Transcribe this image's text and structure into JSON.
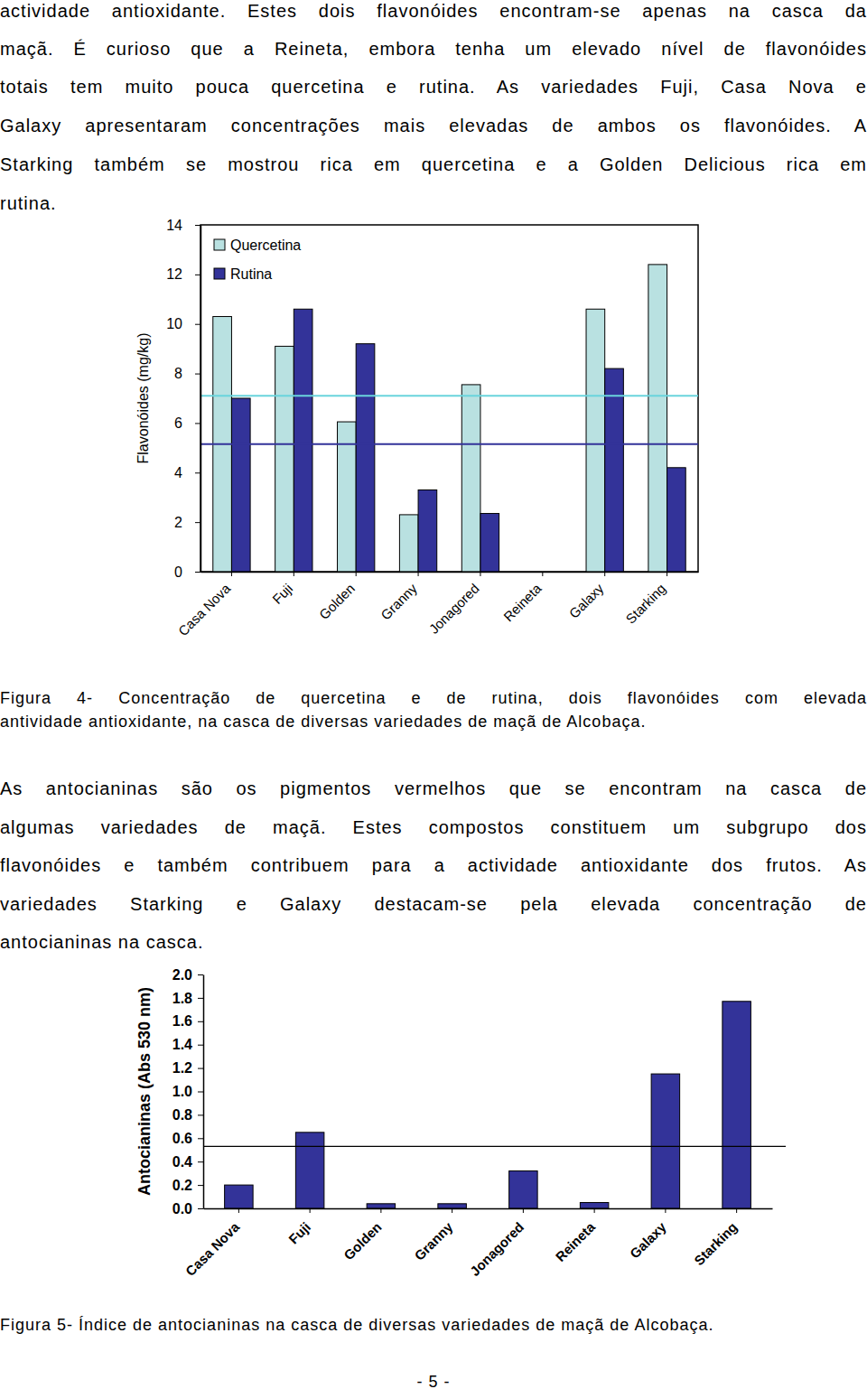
{
  "document": {
    "paragraphs": [
      {
        "lines": [
          "actividade antioxidante. Estes dois flavonóides encontram-se apenas na casca da",
          "maçã. É curioso que a Reineta, embora tenha um elevado nível de flavonóides",
          "totais tem muito pouca quercetina e rutina. As variedades Fuji, Casa Nova e",
          "Galaxy apresentaram concentrações mais elevadas de ambos os flavonóides. A",
          "Starking também se mostrou rica em quercetina e a Golden Delicious rica em",
          "rutina."
        ]
      },
      {
        "lines": [
          "As antocianinas são os pigmentos vermelhos que se encontram na casca de",
          "algumas variedades de maçã. Estes compostos constituem um subgrupo dos",
          "flavonóides e também contribuem para a actividade antioxidante dos frutos. As",
          "variedades Starking e Galaxy destacam-se pela elevada concentração de",
          "antocianinas na casca."
        ]
      }
    ],
    "captions": [
      {
        "lines": [
          "Figura 4- Concentração de quercetina e de rutina, dois flavonóides com elevada",
          "antividade antioxidante, na casca de diversas variedades de maçã de Alcobaça."
        ]
      },
      {
        "lines": [
          "Figura 5- Índice de antocianinas na casca de diversas variedades de maçã de Alcobaça."
        ]
      }
    ],
    "page_number": "- 5 -"
  },
  "chart_data": [
    {
      "type": "bar",
      "categories": [
        "Casa Nova",
        "Fuji",
        "Golden",
        "Granny",
        "Jonagored",
        "Reineta",
        "Galaxy",
        "Starking"
      ],
      "series": [
        {
          "name": "Quercetina",
          "color": "#b9e1e1",
          "values": [
            10.3,
            9.1,
            6.05,
            2.3,
            7.55,
            0,
            10.6,
            12.4
          ]
        },
        {
          "name": "Rutina",
          "color": "#333399",
          "values": [
            7.0,
            10.6,
            9.2,
            3.3,
            2.35,
            0,
            8.2,
            4.2
          ]
        }
      ],
      "y_label": "Flavonóides (mg/kg)",
      "ylim": [
        0,
        14
      ],
      "yticks": [
        0,
        2,
        4,
        6,
        8,
        10,
        12,
        14
      ],
      "legend": "top-left",
      "grid": false,
      "reference_lines": [
        {
          "value": 7.1,
          "color": "#6ad4dc"
        },
        {
          "value": 5.15,
          "color": "#333399"
        }
      ]
    },
    {
      "type": "bar",
      "categories": [
        "Casa Nova",
        "Fuji",
        "Golden",
        "Granny",
        "Jonagored",
        "Reineta",
        "Galaxy",
        "Starking"
      ],
      "values": [
        0.2,
        0.65,
        0.04,
        0.04,
        0.32,
        0.05,
        1.15,
        1.77
      ],
      "color": "#333399",
      "y_label": "Antocianinas (Abs 530 nm)",
      "ylim": [
        0,
        2
      ],
      "yticks": [
        {
          "value": 0,
          "label": "0.0"
        },
        0.2,
        0.4,
        0.6,
        0.8,
        {
          "value": 1,
          "label": "1.0"
        },
        1.2,
        1.4,
        1.6,
        1.8,
        {
          "value": 2,
          "label": "2.0"
        }
      ],
      "grid": false,
      "reference_lines": [
        {
          "value": 0.53,
          "color": "#000000"
        }
      ]
    }
  ]
}
